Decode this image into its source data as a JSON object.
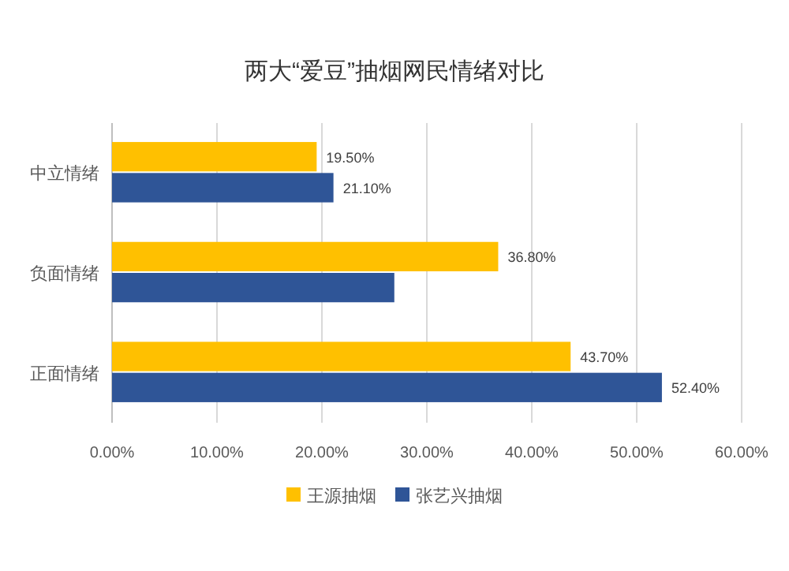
{
  "chart_data": {
    "type": "bar",
    "orientation": "horizontal",
    "title": "两大“爱豆”抽烟网民情绪对比",
    "categories": [
      "中立情绪",
      "负面情绪",
      "正面情绪"
    ],
    "series": [
      {
        "name": "王源抽烟",
        "color": "#ffc000",
        "values": [
          19.5,
          36.8,
          43.7
        ],
        "value_labels": [
          "19.50%",
          "36.80%",
          "43.70%"
        ]
      },
      {
        "name": "张艺兴抽烟",
        "color": "#2f5597",
        "values": [
          21.1,
          26.9,
          52.4
        ],
        "value_labels": [
          "21.10%",
          null,
          "52.40%"
        ]
      }
    ],
    "xlim": [
      0,
      60
    ],
    "xticks": [
      {
        "value": 0,
        "label": "0.00%"
      },
      {
        "value": 10,
        "label": "10.00%"
      },
      {
        "value": 20,
        "label": "20.00%"
      },
      {
        "value": 30,
        "label": "30.00%"
      },
      {
        "value": 40,
        "label": "40.00%"
      },
      {
        "value": 50,
        "label": "50.00%"
      },
      {
        "value": 60,
        "label": "60.00%"
      }
    ],
    "grid": "x",
    "legend": "bottom"
  }
}
